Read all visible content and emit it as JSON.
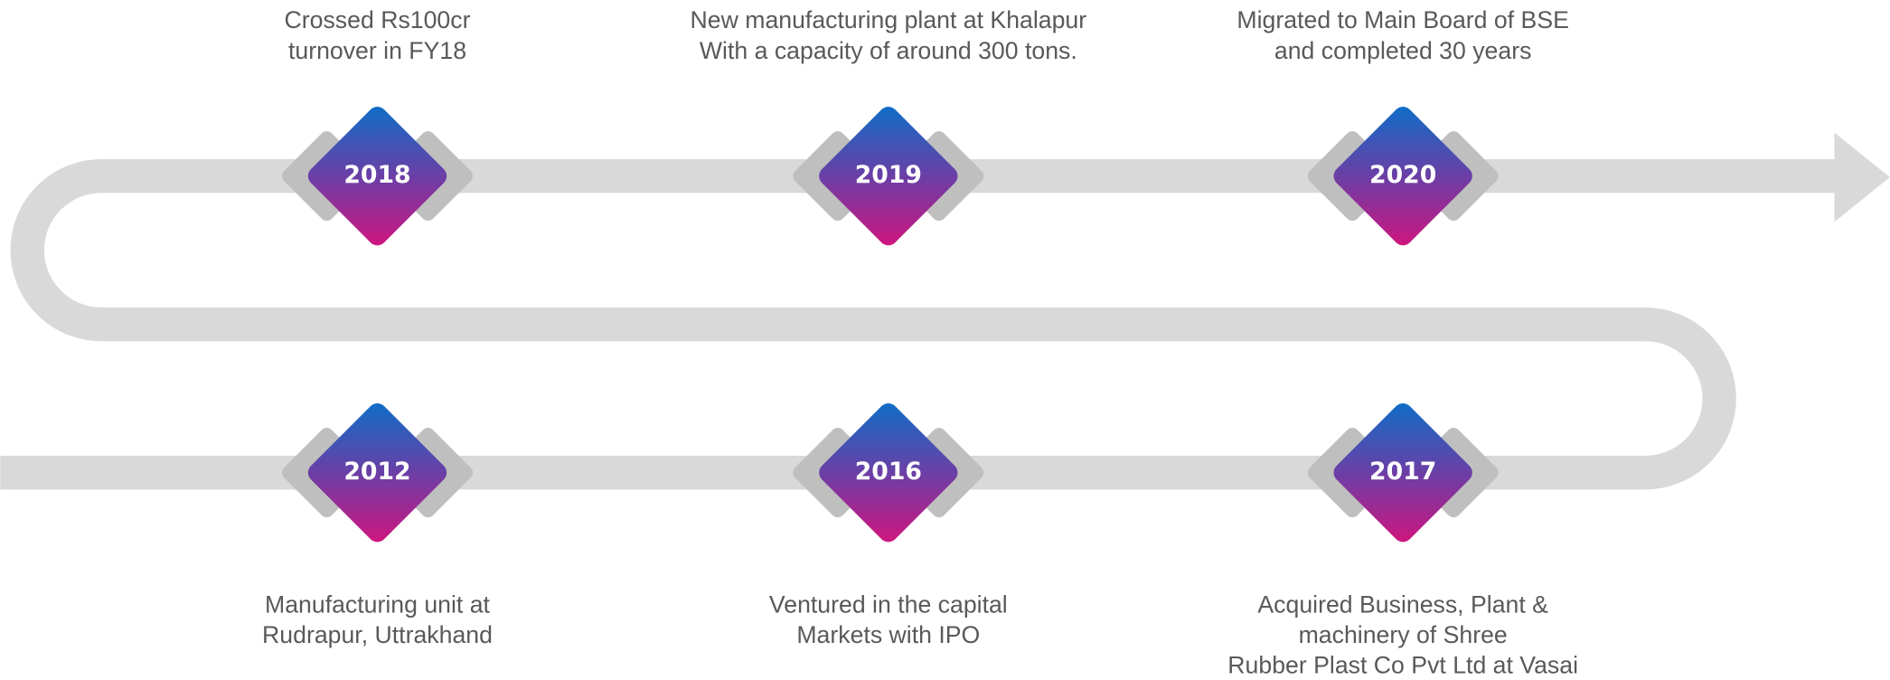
{
  "milestones": [
    {
      "year": "2012",
      "lines": [
        "Manufacturing unit at",
        "Rudrapur, Uttrakhand"
      ]
    },
    {
      "year": "2016",
      "lines": [
        "Ventured in the capital",
        "Markets with IPO"
      ]
    },
    {
      "year": "2017",
      "lines": [
        "Acquired Business, Plant &",
        "machinery of Shree",
        "Rubber Plast Co Pvt Ltd at Vasai"
      ]
    },
    {
      "year": "2018",
      "lines": [
        "Crossed Rs100cr",
        "turnover in FY18"
      ]
    },
    {
      "year": "2019",
      "lines": [
        "New manufacturing plant at Khalapur",
        "With a capacity of around 300 tons."
      ]
    },
    {
      "year": "2020",
      "lines": [
        "Migrated to Main Board of BSE",
        "and completed 30 years"
      ]
    }
  ]
}
